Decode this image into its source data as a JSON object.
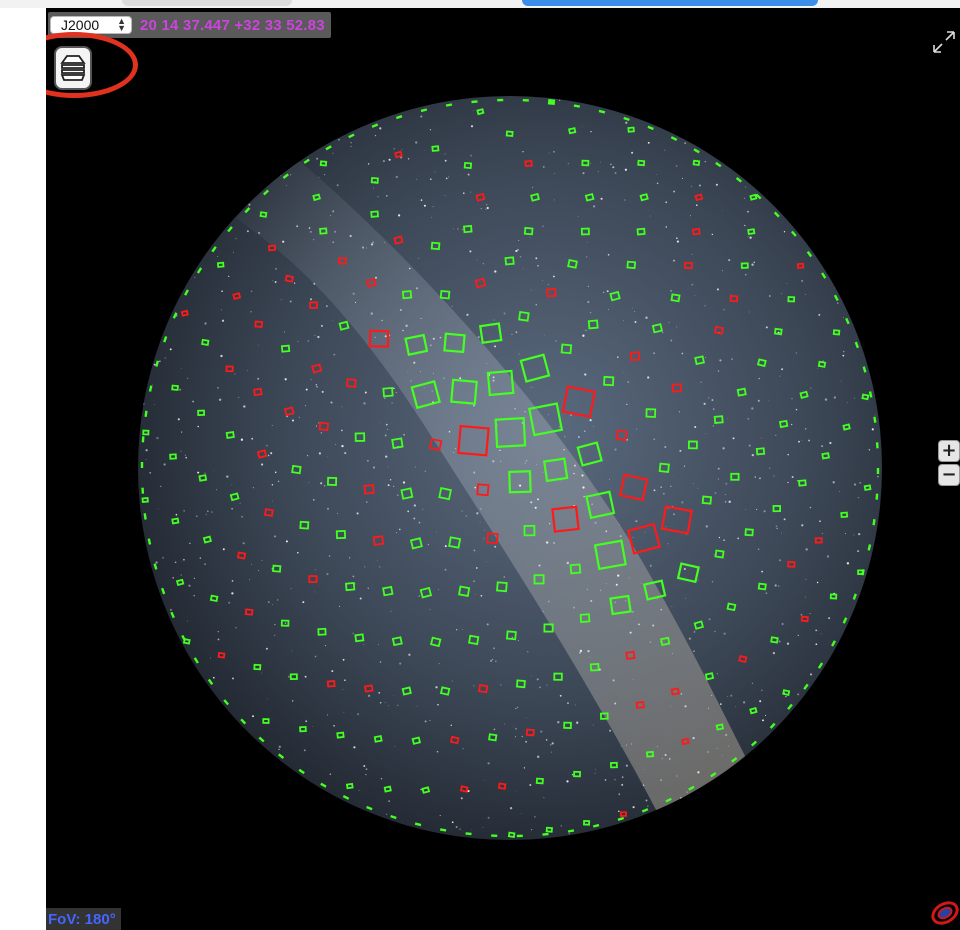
{
  "frame_selector": {
    "value": "J2000",
    "arrows": {
      "up": "▲",
      "down": "▼"
    }
  },
  "coordinates": "20 14 37.447 +32 33 52.83",
  "fov": "FoV: 180°",
  "zoom": {
    "in": "+",
    "out": "−"
  },
  "icons": {
    "layers": "layers-stack-icon",
    "fullscreen": "expand-arrows-icon",
    "logo": "aladin-logo-icon"
  },
  "colors": {
    "coordinates": "#cc44dd",
    "fov": "#4466ff",
    "highlight": "#e0321e",
    "footprint_green": "#44ff22",
    "footprint_red": "#ff1a1a",
    "background": "#000000"
  }
}
